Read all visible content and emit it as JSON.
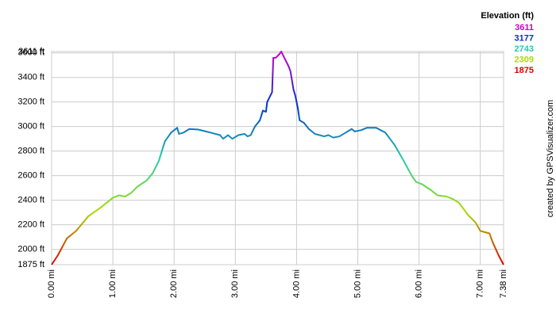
{
  "chart_data": {
    "type": "line",
    "x": [
      0,
      0.1,
      0.25,
      0.4,
      0.6,
      0.8,
      1.0,
      1.1,
      1.2,
      1.3,
      1.4,
      1.55,
      1.65,
      1.75,
      1.85,
      1.95,
      2.05,
      2.08,
      2.15,
      2.25,
      2.4,
      2.6,
      2.75,
      2.8,
      2.88,
      2.95,
      3.05,
      3.15,
      3.2,
      3.25,
      3.32,
      3.4,
      3.45,
      3.5,
      3.52,
      3.6,
      3.62,
      3.66,
      3.72,
      3.75,
      3.8,
      3.87,
      3.9,
      3.95,
      3.98,
      4.02,
      4.05,
      4.12,
      4.2,
      4.3,
      4.45,
      4.52,
      4.6,
      4.7,
      4.8,
      4.9,
      4.95,
      5.05,
      5.15,
      5.3,
      5.45,
      5.6,
      5.75,
      5.88,
      5.95,
      6.05,
      6.2,
      6.3,
      6.45,
      6.55,
      6.65,
      6.8,
      6.92,
      7.0,
      7.15,
      7.2,
      7.3,
      7.38
    ],
    "values": [
      1875,
      1950,
      2090,
      2150,
      2270,
      2340,
      2420,
      2440,
      2430,
      2460,
      2510,
      2560,
      2620,
      2720,
      2880,
      2950,
      2990,
      2940,
      2950,
      2980,
      2975,
      2950,
      2930,
      2900,
      2930,
      2900,
      2930,
      2940,
      2920,
      2930,
      3000,
      3050,
      3130,
      3120,
      3200,
      3280,
      3560,
      3560,
      3590,
      3611,
      3560,
      3490,
      3450,
      3300,
      3250,
      3150,
      3050,
      3030,
      2980,
      2940,
      2920,
      2930,
      2910,
      2920,
      2950,
      2980,
      2960,
      2970,
      2990,
      2990,
      2950,
      2850,
      2720,
      2600,
      2550,
      2530,
      2480,
      2440,
      2430,
      2410,
      2380,
      2280,
      2220,
      2150,
      2130,
      2060,
      1950,
      1875
    ],
    "xlim": [
      0,
      7.38
    ],
    "xticks": [
      {
        "value": 0,
        "label": "0.00 mi"
      },
      {
        "value": 1,
        "label": "1.00 mi"
      },
      {
        "value": 2,
        "label": "2.00 mi"
      },
      {
        "value": 3,
        "label": "3.00 mi"
      },
      {
        "value": 4,
        "label": "4.00 mi"
      },
      {
        "value": 5,
        "label": "5.00 mi"
      },
      {
        "value": 6,
        "label": "6.00 mi"
      },
      {
        "value": 7,
        "label": "7.00 mi"
      },
      {
        "value": 7.38,
        "label": "7.38 mi"
      }
    ],
    "ylim": [
      1875,
      3611
    ],
    "yticks": [
      {
        "value": 1875,
        "label": "1875 ft"
      },
      {
        "value": 2000,
        "label": "2000 ft"
      },
      {
        "value": 2200,
        "label": "2200 ft"
      },
      {
        "value": 2400,
        "label": "2400 ft"
      },
      {
        "value": 2600,
        "label": "2600 ft"
      },
      {
        "value": 2800,
        "label": "2800 ft"
      },
      {
        "value": 3000,
        "label": "3000 ft"
      },
      {
        "value": 3200,
        "label": "3200 ft"
      },
      {
        "value": 3400,
        "label": "3400 ft"
      },
      {
        "value": 3600,
        "label": "3600 ft"
      },
      {
        "value": 3611,
        "label": "3611 ft"
      }
    ],
    "grid": true,
    "color_scale": {
      "title": "Elevation (ft)",
      "stops": [
        {
          "value": 3611,
          "color": "#cc00cc"
        },
        {
          "value": 3177,
          "color": "#0033cc"
        },
        {
          "value": 2743,
          "color": "#22ccaa"
        },
        {
          "value": 2309,
          "color": "#aadd00"
        },
        {
          "value": 1875,
          "color": "#dd0000"
        }
      ]
    },
    "credit": "created by GPSVisualizer.com"
  }
}
